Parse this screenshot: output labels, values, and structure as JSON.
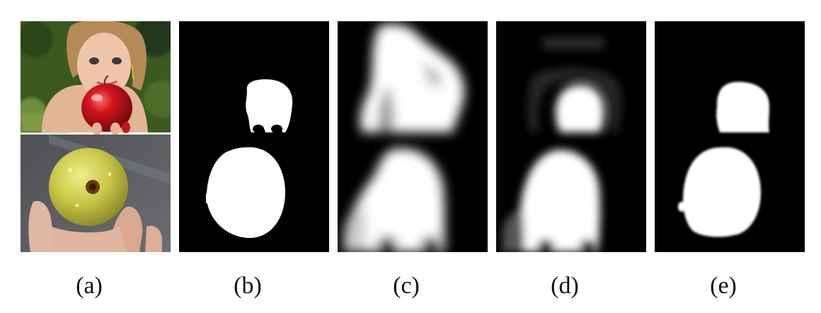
{
  "figure": {
    "panels": [
      {
        "id": "a",
        "label": "(a)",
        "content": "input photographs"
      },
      {
        "id": "b",
        "label": "(b)",
        "content": "ground-truth masks"
      },
      {
        "id": "c",
        "label": "(c)",
        "content": "saliency map"
      },
      {
        "id": "d",
        "label": "(d)",
        "content": "saliency map"
      },
      {
        "id": "e",
        "label": "(e)",
        "content": "saliency map"
      }
    ]
  },
  "colors": {
    "background": "#ffffff",
    "mask_bg": "#000000",
    "mask_fg": "#ffffff",
    "red_apple": "#c0141c",
    "green_apple": "#c6c645",
    "foliage": "#3d5a22",
    "asphalt": "#5d5f62",
    "skin": "#e3b79c"
  }
}
